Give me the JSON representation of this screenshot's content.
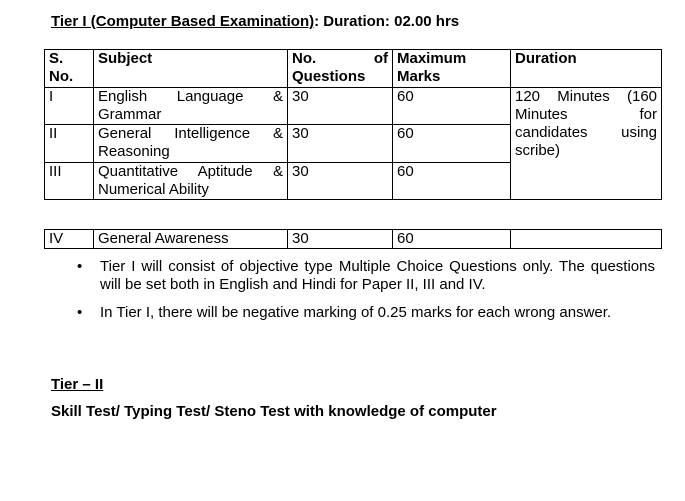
{
  "heading": {
    "underlined": "Tier I (Computer Based Examination)",
    "rest": ": Duration: 02.00 hrs"
  },
  "table": {
    "headers": {
      "sno": "S. No.",
      "subject": "Subject",
      "questions_a": "No.",
      "questions_b": "of",
      "questions_c": "Questions",
      "marks": "Maximum Marks",
      "duration": "Duration"
    },
    "rows": [
      {
        "sno": "I",
        "subject": "English Language & Grammar",
        "questions": "30",
        "marks": "60"
      },
      {
        "sno": "II",
        "subject": "General Intelligence & Reasoning",
        "questions": "30",
        "marks": "60"
      },
      {
        "sno": "III",
        "subject": "Quantitative Aptitude & Numerical Ability",
        "questions": "30",
        "marks": "60"
      }
    ],
    "duration": "120 Minutes (160 Minutes for candidates using scribe)"
  },
  "table2": {
    "sno": "IV",
    "subject": "General Awareness",
    "questions": "30",
    "marks": "60",
    "duration": ""
  },
  "bullets": [
    "Tier I will consist of objective type Multiple Choice Questions only. The questions will be set both in English and Hindi for Paper II, III and IV.",
    "In Tier I, there will be negative marking of 0.25 marks for each wrong answer."
  ],
  "tier2": {
    "title": "Tier – II",
    "subtitle": "Skill Test/ Typing Test/ Steno Test with knowledge of computer"
  }
}
